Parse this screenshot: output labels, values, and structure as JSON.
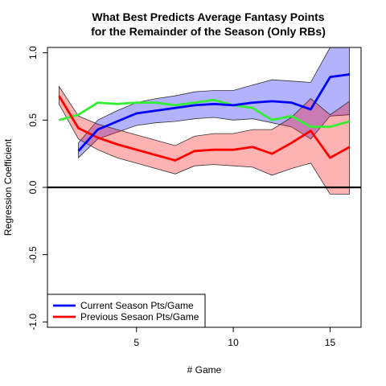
{
  "chart_data": {
    "type": "line",
    "title_line1": "What Best Predicts Average Fantasy Points",
    "title_line2": "for the Remainder of the Season (Only RBs)",
    "xlabel": "# Game",
    "ylabel": "Regression Coefficient",
    "xlim": [
      0.4,
      16.6
    ],
    "ylim": [
      -1.04,
      1.04
    ],
    "xticks": [
      5,
      10,
      15
    ],
    "yticks": [
      -1.0,
      -0.5,
      0.0,
      0.5,
      1.0
    ],
    "ytick_labels": [
      "-1.0",
      "-0.5",
      "0.0",
      "0.5",
      "1.0"
    ],
    "zero_line": 0.0,
    "legend_position": "bottom-left",
    "series": [
      {
        "name": "Current Season Pts/Game",
        "color": "#0000ff",
        "band_color": "#0000ff",
        "in_legend": true,
        "x": [
          2,
          3,
          4,
          5,
          6,
          7,
          8,
          9,
          10,
          11,
          12,
          13,
          14,
          15,
          16
        ],
        "values": [
          0.27,
          0.43,
          0.49,
          0.55,
          0.57,
          0.59,
          0.61,
          0.62,
          0.61,
          0.63,
          0.64,
          0.63,
          0.58,
          0.82,
          0.84
        ],
        "lower": [
          0.22,
          0.36,
          0.41,
          0.46,
          0.48,
          0.49,
          0.51,
          0.52,
          0.5,
          0.51,
          0.48,
          0.45,
          0.36,
          0.53,
          0.54
        ],
        "upper": [
          0.33,
          0.5,
          0.57,
          0.63,
          0.66,
          0.68,
          0.71,
          0.72,
          0.72,
          0.76,
          0.8,
          0.79,
          0.78,
          1.12,
          1.12
        ]
      },
      {
        "name": "Previous Sesaon Pts/Game",
        "color": "#ff0000",
        "band_color": "#ff0000",
        "in_legend": true,
        "x": [
          1,
          2,
          3,
          4,
          5,
          6,
          7,
          8,
          9,
          10,
          11,
          12,
          13,
          14,
          15,
          16
        ],
        "values": [
          0.68,
          0.44,
          0.37,
          0.32,
          0.28,
          0.24,
          0.2,
          0.27,
          0.28,
          0.28,
          0.3,
          0.25,
          0.33,
          0.42,
          0.22,
          0.3
        ],
        "lower": [
          0.62,
          0.36,
          0.28,
          0.22,
          0.18,
          0.14,
          0.1,
          0.16,
          0.17,
          0.16,
          0.15,
          0.09,
          0.14,
          0.18,
          -0.05,
          -0.05
        ],
        "upper": [
          0.75,
          0.53,
          0.47,
          0.43,
          0.39,
          0.35,
          0.31,
          0.38,
          0.4,
          0.4,
          0.43,
          0.43,
          0.52,
          0.66,
          0.54,
          0.64
        ]
      },
      {
        "color": "#33ee33",
        "in_legend": false,
        "x": [
          1,
          2,
          3,
          4,
          5,
          6,
          7,
          8,
          9,
          10,
          11,
          12,
          13,
          14,
          15,
          16
        ],
        "values": [
          0.5,
          0.54,
          0.63,
          0.62,
          0.63,
          0.63,
          0.61,
          0.63,
          0.65,
          0.61,
          0.59,
          0.5,
          0.53,
          0.45,
          0.45,
          0.49
        ]
      }
    ]
  }
}
